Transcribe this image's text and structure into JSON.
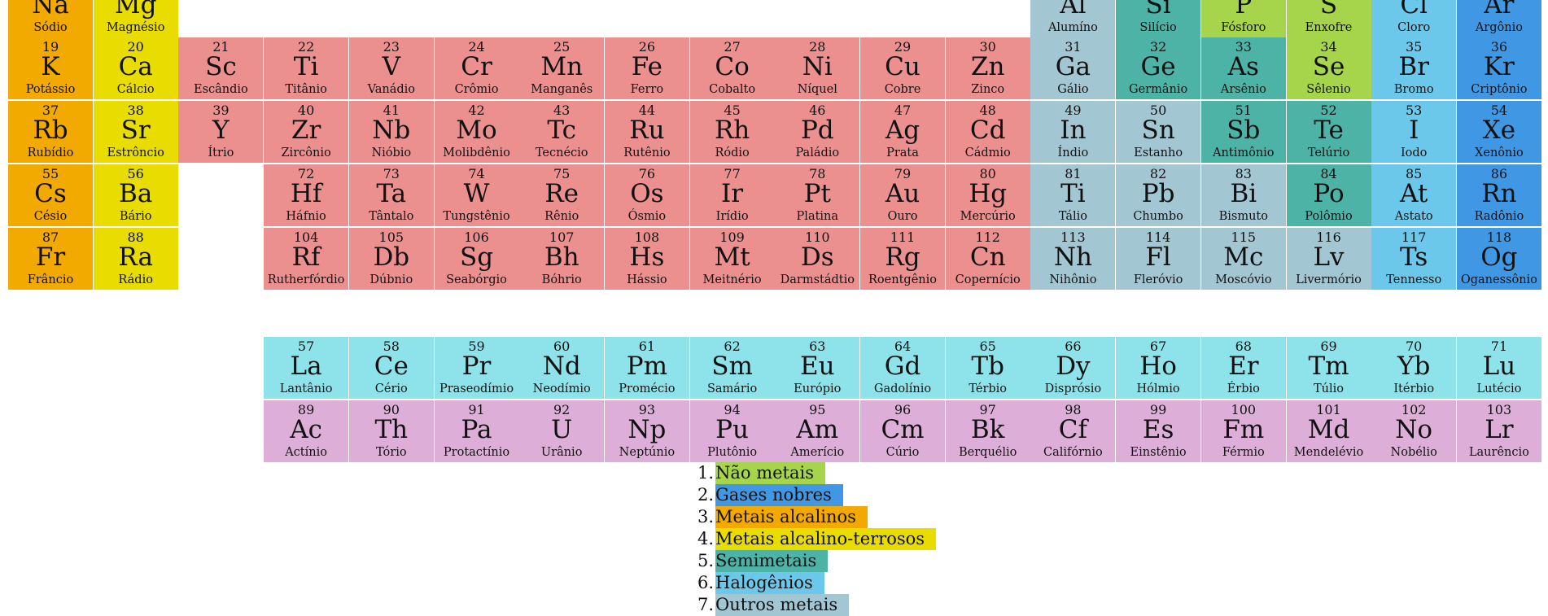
{
  "colors": {
    "nonmetal": "#a6d44a",
    "noble": "#4098e4",
    "alkali": "#f2a900",
    "alkaline": "#e8dc00",
    "metalloid": "#4db3a7",
    "halogen": "#6bc8ea",
    "post": "#a2c6d2",
    "transition": "#ec8f8f",
    "lanthanide": "#8ee3ea",
    "actinide": "#dcaed8"
  },
  "elements": [
    {
      "n": "",
      "s": "Na",
      "name": "Sódio",
      "g": 1,
      "p": 3,
      "c": "alkali"
    },
    {
      "n": "",
      "s": "Mg",
      "name": "Magnésio",
      "g": 2,
      "p": 3,
      "c": "alkaline"
    },
    {
      "n": "",
      "s": "Al",
      "name": "Alumíno",
      "g": 13,
      "p": 3,
      "c": "post"
    },
    {
      "n": "",
      "s": "Si",
      "name": "Silício",
      "g": 14,
      "p": 3,
      "c": "metalloid"
    },
    {
      "n": "",
      "s": "P",
      "name": "Fósforo",
      "g": 15,
      "p": 3,
      "c": "nonmetal"
    },
    {
      "n": "",
      "s": "S",
      "name": "Enxofre",
      "g": 16,
      "p": 3,
      "c": "nonmetal"
    },
    {
      "n": "",
      "s": "Cl",
      "name": "Cloro",
      "g": 17,
      "p": 3,
      "c": "halogen"
    },
    {
      "n": "",
      "s": "Ar",
      "name": "Argônio",
      "g": 18,
      "p": 3,
      "c": "noble"
    },
    {
      "n": "19",
      "s": "K",
      "name": "Potássio",
      "g": 1,
      "p": 4,
      "c": "alkali"
    },
    {
      "n": "20",
      "s": "Ca",
      "name": "Cálcio",
      "g": 2,
      "p": 4,
      "c": "alkaline"
    },
    {
      "n": "21",
      "s": "Sc",
      "name": "Escândio",
      "g": 3,
      "p": 4,
      "c": "transition"
    },
    {
      "n": "22",
      "s": "Ti",
      "name": "Titânio",
      "g": 4,
      "p": 4,
      "c": "transition"
    },
    {
      "n": "23",
      "s": "V",
      "name": "Vanádio",
      "g": 5,
      "p": 4,
      "c": "transition"
    },
    {
      "n": "24",
      "s": "Cr",
      "name": "Crômio",
      "g": 6,
      "p": 4,
      "c": "transition"
    },
    {
      "n": "25",
      "s": "Mn",
      "name": "Manganês",
      "g": 7,
      "p": 4,
      "c": "transition"
    },
    {
      "n": "26",
      "s": "Fe",
      "name": "Ferro",
      "g": 8,
      "p": 4,
      "c": "transition"
    },
    {
      "n": "27",
      "s": "Co",
      "name": "Cobalto",
      "g": 9,
      "p": 4,
      "c": "transition"
    },
    {
      "n": "28",
      "s": "Ni",
      "name": "Níquel",
      "g": 10,
      "p": 4,
      "c": "transition"
    },
    {
      "n": "29",
      "s": "Cu",
      "name": "Cobre",
      "g": 11,
      "p": 4,
      "c": "transition"
    },
    {
      "n": "30",
      "s": "Zn",
      "name": "Zinco",
      "g": 12,
      "p": 4,
      "c": "transition"
    },
    {
      "n": "31",
      "s": "Ga",
      "name": "Gálio",
      "g": 13,
      "p": 4,
      "c": "post"
    },
    {
      "n": "32",
      "s": "Ge",
      "name": "Germânio",
      "g": 14,
      "p": 4,
      "c": "metalloid"
    },
    {
      "n": "33",
      "s": "As",
      "name": "Arsênio",
      "g": 15,
      "p": 4,
      "c": "metalloid"
    },
    {
      "n": "34",
      "s": "Se",
      "name": "Sêlenio",
      "g": 16,
      "p": 4,
      "c": "nonmetal"
    },
    {
      "n": "35",
      "s": "Br",
      "name": "Bromo",
      "g": 17,
      "p": 4,
      "c": "halogen"
    },
    {
      "n": "36",
      "s": "Kr",
      "name": "Criptônio",
      "g": 18,
      "p": 4,
      "c": "noble"
    },
    {
      "n": "37",
      "s": "Rb",
      "name": "Rubídio",
      "g": 1,
      "p": 5,
      "c": "alkali"
    },
    {
      "n": "38",
      "s": "Sr",
      "name": "Estrôncio",
      "g": 2,
      "p": 5,
      "c": "alkaline"
    },
    {
      "n": "39",
      "s": "Y",
      "name": "Ítrio",
      "g": 3,
      "p": 5,
      "c": "transition"
    },
    {
      "n": "40",
      "s": "Zr",
      "name": "Zircônio",
      "g": 4,
      "p": 5,
      "c": "transition"
    },
    {
      "n": "41",
      "s": "Nb",
      "name": "Nióbio",
      "g": 5,
      "p": 5,
      "c": "transition"
    },
    {
      "n": "42",
      "s": "Mo",
      "name": "Molibdênio",
      "g": 6,
      "p": 5,
      "c": "transition"
    },
    {
      "n": "43",
      "s": "Tc",
      "name": "Tecnécio",
      "g": 7,
      "p": 5,
      "c": "transition"
    },
    {
      "n": "44",
      "s": "Ru",
      "name": "Rutênio",
      "g": 8,
      "p": 5,
      "c": "transition"
    },
    {
      "n": "45",
      "s": "Rh",
      "name": "Ródio",
      "g": 9,
      "p": 5,
      "c": "transition"
    },
    {
      "n": "46",
      "s": "Pd",
      "name": "Paládio",
      "g": 10,
      "p": 5,
      "c": "transition"
    },
    {
      "n": "47",
      "s": "Ag",
      "name": "Prata",
      "g": 11,
      "p": 5,
      "c": "transition"
    },
    {
      "n": "48",
      "s": "Cd",
      "name": "Cádmio",
      "g": 12,
      "p": 5,
      "c": "transition"
    },
    {
      "n": "49",
      "s": "In",
      "name": "Índio",
      "g": 13,
      "p": 5,
      "c": "post"
    },
    {
      "n": "50",
      "s": "Sn",
      "name": "Estanho",
      "g": 14,
      "p": 5,
      "c": "post"
    },
    {
      "n": "51",
      "s": "Sb",
      "name": "Antimônio",
      "g": 15,
      "p": 5,
      "c": "metalloid"
    },
    {
      "n": "52",
      "s": "Te",
      "name": "Telúrio",
      "g": 16,
      "p": 5,
      "c": "metalloid"
    },
    {
      "n": "53",
      "s": "I",
      "name": "Iodo",
      "g": 17,
      "p": 5,
      "c": "halogen"
    },
    {
      "n": "54",
      "s": "Xe",
      "name": "Xenônio",
      "g": 18,
      "p": 5,
      "c": "noble"
    },
    {
      "n": "55",
      "s": "Cs",
      "name": "Césio",
      "g": 1,
      "p": 6,
      "c": "alkali"
    },
    {
      "n": "56",
      "s": "Ba",
      "name": "Bário",
      "g": 2,
      "p": 6,
      "c": "alkaline"
    },
    {
      "n": "72",
      "s": "Hf",
      "name": "Háfnio",
      "g": 4,
      "p": 6,
      "c": "transition"
    },
    {
      "n": "73",
      "s": "Ta",
      "name": "Tântalo",
      "g": 5,
      "p": 6,
      "c": "transition"
    },
    {
      "n": "74",
      "s": "W",
      "name": "Tungstênio",
      "g": 6,
      "p": 6,
      "c": "transition"
    },
    {
      "n": "75",
      "s": "Re",
      "name": "Rênio",
      "g": 7,
      "p": 6,
      "c": "transition"
    },
    {
      "n": "76",
      "s": "Os",
      "name": "Ósmio",
      "g": 8,
      "p": 6,
      "c": "transition"
    },
    {
      "n": "77",
      "s": "Ir",
      "name": "Irídio",
      "g": 9,
      "p": 6,
      "c": "transition"
    },
    {
      "n": "78",
      "s": "Pt",
      "name": "Platina",
      "g": 10,
      "p": 6,
      "c": "transition"
    },
    {
      "n": "79",
      "s": "Au",
      "name": "Ouro",
      "g": 11,
      "p": 6,
      "c": "transition"
    },
    {
      "n": "80",
      "s": "Hg",
      "name": "Mercúrio",
      "g": 12,
      "p": 6,
      "c": "transition"
    },
    {
      "n": "81",
      "s": "Ti",
      "name": "Tálio",
      "g": 13,
      "p": 6,
      "c": "post"
    },
    {
      "n": "82",
      "s": "Pb",
      "name": "Chumbo",
      "g": 14,
      "p": 6,
      "c": "post"
    },
    {
      "n": "83",
      "s": "Bi",
      "name": "Bismuto",
      "g": 15,
      "p": 6,
      "c": "post"
    },
    {
      "n": "84",
      "s": "Po",
      "name": "Polômio",
      "g": 16,
      "p": 6,
      "c": "metalloid"
    },
    {
      "n": "85",
      "s": "At",
      "name": "Astato",
      "g": 17,
      "p": 6,
      "c": "halogen"
    },
    {
      "n": "86",
      "s": "Rn",
      "name": "Radônio",
      "g": 18,
      "p": 6,
      "c": "noble"
    },
    {
      "n": "87",
      "s": "Fr",
      "name": "Frâncio",
      "g": 1,
      "p": 7,
      "c": "alkali"
    },
    {
      "n": "88",
      "s": "Ra",
      "name": "Rádio",
      "g": 2,
      "p": 7,
      "c": "alkaline"
    },
    {
      "n": "104",
      "s": "Rf",
      "name": "Rutherfórdio",
      "g": 4,
      "p": 7,
      "c": "transition"
    },
    {
      "n": "105",
      "s": "Db",
      "name": "Dúbnio",
      "g": 5,
      "p": 7,
      "c": "transition"
    },
    {
      "n": "106",
      "s": "Sg",
      "name": "Seabórgio",
      "g": 6,
      "p": 7,
      "c": "transition"
    },
    {
      "n": "107",
      "s": "Bh",
      "name": "Bóhrio",
      "g": 7,
      "p": 7,
      "c": "transition"
    },
    {
      "n": "108",
      "s": "Hs",
      "name": "Hássio",
      "g": 8,
      "p": 7,
      "c": "transition"
    },
    {
      "n": "109",
      "s": "Mt",
      "name": "Meitnério",
      "g": 9,
      "p": 7,
      "c": "transition"
    },
    {
      "n": "110",
      "s": "Ds",
      "name": "Darmstádtio",
      "g": 10,
      "p": 7,
      "c": "transition"
    },
    {
      "n": "111",
      "s": "Rg",
      "name": "Roentgênio",
      "g": 11,
      "p": 7,
      "c": "transition"
    },
    {
      "n": "112",
      "s": "Cn",
      "name": "Copernício",
      "g": 12,
      "p": 7,
      "c": "transition"
    },
    {
      "n": "113",
      "s": "Nh",
      "name": "Nihônio",
      "g": 13,
      "p": 7,
      "c": "post"
    },
    {
      "n": "114",
      "s": "Fl",
      "name": "Fleróvio",
      "g": 14,
      "p": 7,
      "c": "post"
    },
    {
      "n": "115",
      "s": "Mc",
      "name": "Moscóvio",
      "g": 15,
      "p": 7,
      "c": "post"
    },
    {
      "n": "116",
      "s": "Lv",
      "name": "Livermório",
      "g": 16,
      "p": 7,
      "c": "post"
    },
    {
      "n": "117",
      "s": "Ts",
      "name": "Tennesso",
      "g": 17,
      "p": 7,
      "c": "halogen"
    },
    {
      "n": "118",
      "s": "Og",
      "name": "Oganessônio",
      "g": 18,
      "p": 7,
      "c": "noble"
    },
    {
      "n": "57",
      "s": "La",
      "name": "Lantânio",
      "g": 4,
      "p": 8,
      "c": "lanthanide"
    },
    {
      "n": "58",
      "s": "Ce",
      "name": "Cério",
      "g": 5,
      "p": 8,
      "c": "lanthanide"
    },
    {
      "n": "59",
      "s": "Pr",
      "name": "Praseodímio",
      "g": 6,
      "p": 8,
      "c": "lanthanide"
    },
    {
      "n": "60",
      "s": "Nd",
      "name": "Neodímio",
      "g": 7,
      "p": 8,
      "c": "lanthanide"
    },
    {
      "n": "61",
      "s": "Pm",
      "name": "Promécio",
      "g": 8,
      "p": 8,
      "c": "lanthanide"
    },
    {
      "n": "62",
      "s": "Sm",
      "name": "Samário",
      "g": 9,
      "p": 8,
      "c": "lanthanide"
    },
    {
      "n": "63",
      "s": "Eu",
      "name": "Európio",
      "g": 10,
      "p": 8,
      "c": "lanthanide"
    },
    {
      "n": "64",
      "s": "Gd",
      "name": "Gadolínio",
      "g": 11,
      "p": 8,
      "c": "lanthanide"
    },
    {
      "n": "65",
      "s": "Tb",
      "name": "Térbio",
      "g": 12,
      "p": 8,
      "c": "lanthanide"
    },
    {
      "n": "66",
      "s": "Dy",
      "name": "Disprósio",
      "g": 13,
      "p": 8,
      "c": "lanthanide"
    },
    {
      "n": "67",
      "s": "Ho",
      "name": "Hólmio",
      "g": 14,
      "p": 8,
      "c": "lanthanide"
    },
    {
      "n": "68",
      "s": "Er",
      "name": "Érbio",
      "g": 15,
      "p": 8,
      "c": "lanthanide"
    },
    {
      "n": "69",
      "s": "Tm",
      "name": "Túlio",
      "g": 16,
      "p": 8,
      "c": "lanthanide"
    },
    {
      "n": "70",
      "s": "Yb",
      "name": "Itérbio",
      "g": 17,
      "p": 8,
      "c": "lanthanide"
    },
    {
      "n": "71",
      "s": "Lu",
      "name": "Lutécio",
      "g": 18,
      "p": 8,
      "c": "lanthanide"
    },
    {
      "n": "89",
      "s": "Ac",
      "name": "Actínio",
      "g": 4,
      "p": 9,
      "c": "actinide"
    },
    {
      "n": "90",
      "s": "Th",
      "name": "Tório",
      "g": 5,
      "p": 9,
      "c": "actinide"
    },
    {
      "n": "91",
      "s": "Pa",
      "name": "Protactínio",
      "g": 6,
      "p": 9,
      "c": "actinide"
    },
    {
      "n": "92",
      "s": "U",
      "name": "Urânio",
      "g": 7,
      "p": 9,
      "c": "actinide"
    },
    {
      "n": "93",
      "s": "Np",
      "name": "Neptúnio",
      "g": 8,
      "p": 9,
      "c": "actinide"
    },
    {
      "n": "94",
      "s": "Pu",
      "name": "Plutônio",
      "g": 9,
      "p": 9,
      "c": "actinide"
    },
    {
      "n": "95",
      "s": "Am",
      "name": "Amerício",
      "g": 10,
      "p": 9,
      "c": "actinide"
    },
    {
      "n": "96",
      "s": "Cm",
      "name": "Cúrio",
      "g": 11,
      "p": 9,
      "c": "actinide"
    },
    {
      "n": "97",
      "s": "Bk",
      "name": "Berquélio",
      "g": 12,
      "p": 9,
      "c": "actinide"
    },
    {
      "n": "98",
      "s": "Cf",
      "name": "Califórnio",
      "g": 13,
      "p": 9,
      "c": "actinide"
    },
    {
      "n": "99",
      "s": "Es",
      "name": "Einstênio",
      "g": 14,
      "p": 9,
      "c": "actinide"
    },
    {
      "n": "100",
      "s": "Fm",
      "name": "Férmio",
      "g": 15,
      "p": 9,
      "c": "actinide"
    },
    {
      "n": "101",
      "s": "Md",
      "name": "Mendelévio",
      "g": 16,
      "p": 9,
      "c": "actinide"
    },
    {
      "n": "102",
      "s": "No",
      "name": "Nobélio",
      "g": 17,
      "p": 9,
      "c": "actinide"
    },
    {
      "n": "103",
      "s": "Lr",
      "name": "Laurêncio",
      "g": 18,
      "p": 9,
      "c": "actinide"
    }
  ],
  "legend": [
    {
      "num": "1.",
      "label": "Não metais",
      "c": "nonmetal"
    },
    {
      "num": "2.",
      "label": "Gases nobres",
      "c": "noble"
    },
    {
      "num": "3.",
      "label": "Metais alcalinos",
      "c": "alkali"
    },
    {
      "num": "4.",
      "label": "Metais alcalino-terrosos",
      "c": "alkaline"
    },
    {
      "num": "5.",
      "label": "Semimetais",
      "c": "metalloid"
    },
    {
      "num": "6.",
      "label": "Halogênios",
      "c": "halogen"
    },
    {
      "num": "7.",
      "label": "Outros metais",
      "c": "post"
    }
  ]
}
